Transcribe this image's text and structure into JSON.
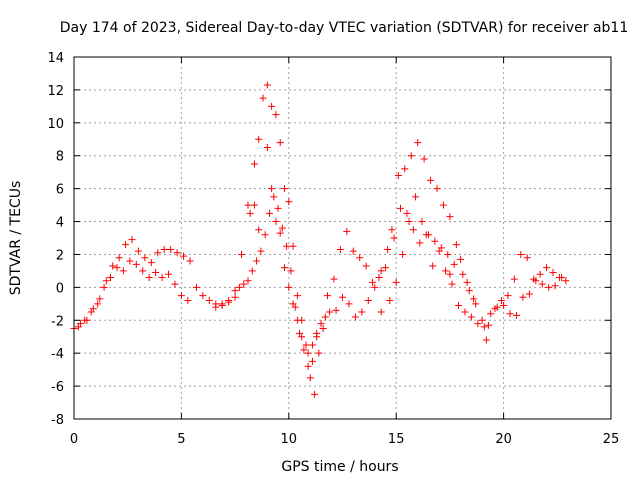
{
  "chart_data": {
    "type": "scatter",
    "title": "Day 174 of 2023, Sidereal Day-to-day VTEC variation (SDTVAR) for receiver ab11",
    "xlabel": "GPS time / hours",
    "ylabel": "SDTVAR / TECUs",
    "xlim": [
      0,
      25
    ],
    "ylim": [
      -8,
      14
    ],
    "xticks": [
      "0",
      "5",
      "10",
      "15",
      "20",
      "25"
    ],
    "yticks": [
      "-8",
      "-6",
      "-4",
      "-2",
      "0",
      "2",
      "4",
      "6",
      "8",
      "10",
      "12",
      "14"
    ],
    "grid": true,
    "marker": "+",
    "color": "#ff0000",
    "series": [
      {
        "name": "SDTVAR",
        "x": [
          0.0,
          0.3,
          0.6,
          0.9,
          1.2,
          1.5,
          1.8,
          2.1,
          2.4,
          2.7,
          3.0,
          3.3,
          3.6,
          3.9,
          4.2,
          4.5,
          4.8,
          5.1,
          5.4,
          5.7,
          6.0,
          6.3,
          6.6,
          6.9,
          7.2,
          7.5,
          7.8,
          8.1,
          8.4,
          8.6,
          8.8,
          9.0,
          9.2,
          9.4,
          9.6,
          9.8,
          10.0,
          10.2,
          10.4,
          10.6,
          10.8,
          11.0,
          11.2,
          11.4,
          11.6,
          11.8,
          12.1,
          12.4,
          12.7,
          13.0,
          13.3,
          13.6,
          13.9,
          14.2,
          14.5,
          14.8,
          15.1,
          15.4,
          15.7,
          16.0,
          16.3,
          16.6,
          16.9,
          17.2,
          17.5,
          17.8,
          18.1,
          18.4,
          18.7,
          19.0,
          19.3,
          19.6,
          19.9,
          20.2,
          20.5,
          20.8,
          21.1,
          21.4,
          21.7,
          22.0,
          22.3,
          22.6,
          22.9,
          0.2,
          0.5,
          0.8,
          1.1,
          1.4,
          1.7,
          2.0,
          2.3,
          2.6,
          2.9,
          3.2,
          3.5,
          3.8,
          4.1,
          4.4,
          4.7,
          5.0,
          5.3,
          6.6,
          6.9,
          7.2,
          7.5,
          7.7,
          7.9,
          8.1,
          8.3,
          8.5,
          8.7,
          8.9,
          9.1,
          9.3,
          9.5,
          9.7,
          9.9,
          10.1,
          10.3,
          10.5,
          10.7,
          10.9,
          11.1,
          11.3,
          11.5,
          11.7,
          11.9,
          12.2,
          12.5,
          12.8,
          13.1,
          13.4,
          13.7,
          14.0,
          14.3,
          14.6,
          14.9,
          15.2,
          15.5,
          15.8,
          16.1,
          16.4,
          16.7,
          17.0,
          17.3,
          17.6,
          17.9,
          18.2,
          18.5,
          18.8,
          19.1,
          19.4,
          19.7,
          20.0,
          20.3,
          20.6,
          20.9,
          21.2,
          21.5,
          21.8,
          22.1,
          22.4,
          22.7,
          8.2,
          8.4,
          8.6,
          9.0,
          9.2,
          9.4,
          9.6,
          9.8,
          10.0,
          10.2,
          10.4,
          10.6,
          10.9,
          11.1,
          11.3,
          15.3,
          15.6,
          15.9,
          16.2,
          16.5,
          16.8,
          17.1,
          17.4,
          17.7,
          18.0,
          18.3,
          18.6,
          14.3,
          14.7,
          15.0,
          17.5,
          19.2
        ],
        "y": [
          -2.5,
          -2.2,
          -2.0,
          -1.3,
          -0.7,
          0.4,
          1.3,
          1.8,
          2.6,
          2.9,
          2.2,
          1.8,
          1.5,
          2.1,
          2.3,
          2.3,
          2.1,
          1.9,
          1.6,
          0.0,
          -0.5,
          -0.8,
          -1.0,
          -1.1,
          -0.9,
          -0.2,
          2.0,
          5.0,
          7.5,
          9.0,
          11.5,
          12.3,
          11.0,
          10.5,
          8.8,
          6.0,
          5.2,
          2.5,
          -0.5,
          -2.0,
          -3.5,
          -5.5,
          -6.5,
          -4.0,
          -2.5,
          -0.5,
          0.5,
          2.3,
          3.4,
          2.2,
          1.8,
          1.3,
          0.3,
          0.6,
          1.2,
          3.5,
          6.8,
          7.2,
          8.0,
          8.8,
          7.8,
          6.5,
          6.0,
          5.0,
          4.3,
          2.6,
          0.8,
          -0.2,
          -1.0,
          -2.0,
          -2.3,
          -1.3,
          -0.8,
          -0.5,
          0.5,
          2.0,
          1.8,
          0.5,
          0.8,
          1.2,
          0.9,
          0.6,
          0.4,
          -2.4,
          -2.0,
          -1.5,
          -1.0,
          0.0,
          0.6,
          1.2,
          1.0,
          1.6,
          1.4,
          1.0,
          0.6,
          0.9,
          0.6,
          0.8,
          0.2,
          -0.5,
          -0.8,
          -1.2,
          -1.0,
          -0.8,
          -0.6,
          0.0,
          0.2,
          0.4,
          1.0,
          1.6,
          2.2,
          3.2,
          4.5,
          5.5,
          4.8,
          3.6,
          2.5,
          1.0,
          -1.2,
          -2.8,
          -3.8,
          -4.8,
          -3.5,
          -2.8,
          -2.2,
          -1.8,
          -1.5,
          -1.4,
          -0.6,
          -1.0,
          -1.8,
          -1.5,
          -0.8,
          0.0,
          1.0,
          2.3,
          3.0,
          4.8,
          4.5,
          3.5,
          2.7,
          3.2,
          1.3,
          2.2,
          1.0,
          0.2,
          -1.1,
          -1.5,
          -1.8,
          -2.2,
          -2.4,
          -1.6,
          -1.2,
          -1.1,
          -1.6,
          -1.7,
          -0.6,
          -0.4,
          0.4,
          0.2,
          0.0,
          0.1,
          0.6,
          4.5,
          5.0,
          3.5,
          8.5,
          6.0,
          4.0,
          3.3,
          1.2,
          0.0,
          -1.0,
          -2.0,
          -3.0,
          -4.0,
          -4.5,
          -3.0,
          2.0,
          4.0,
          5.5,
          4.0,
          3.2,
          2.8,
          2.4,
          2.0,
          1.4,
          1.7,
          0.3,
          -0.7,
          -1.5,
          -0.8,
          0.3,
          0.8,
          -3.2
        ]
      }
    ]
  }
}
